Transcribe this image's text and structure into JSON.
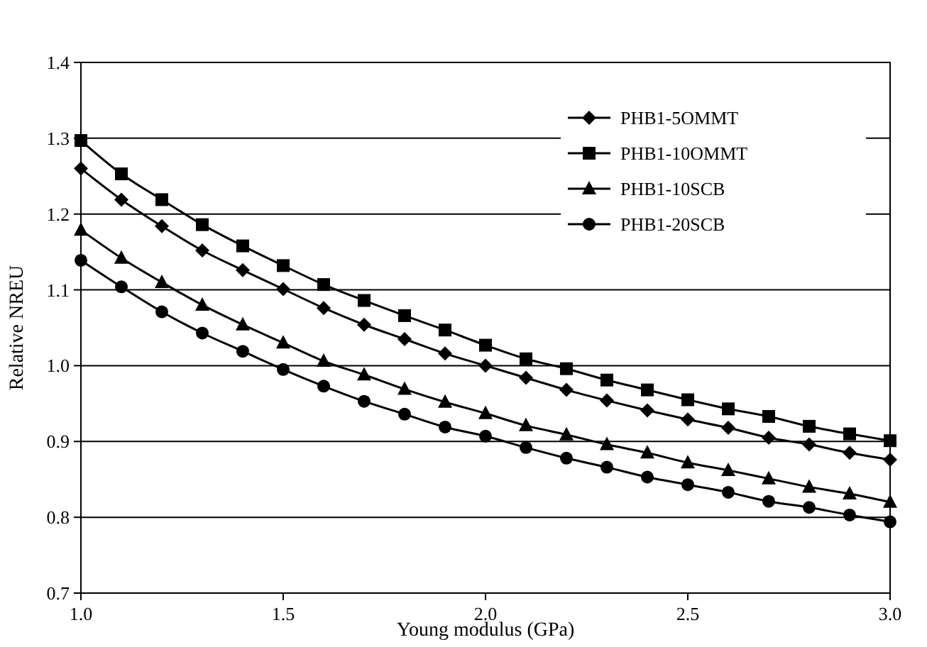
{
  "chart_data": {
    "type": "line",
    "xlabel": "Young modulus (GPa)",
    "ylabel": "Relative NREU",
    "x": [
      1.0,
      1.1,
      1.2,
      1.3,
      1.4,
      1.5,
      1.6,
      1.7,
      1.8,
      1.9,
      2.0,
      2.1,
      2.2,
      2.3,
      2.4,
      2.5,
      2.6,
      2.7,
      2.8,
      2.9,
      3.0
    ],
    "series": [
      {
        "name": "PHB1-5OMMT",
        "color": "#000000",
        "marker": "diamond",
        "values": [
          1.26,
          1.219,
          1.184,
          1.152,
          1.126,
          1.101,
          1.076,
          1.054,
          1.035,
          1.016,
          1.0,
          0.984,
          0.968,
          0.954,
          0.941,
          0.929,
          0.918,
          0.905,
          0.896,
          0.885,
          0.876
        ]
      },
      {
        "name": "PHB1-10OMMT",
        "color": "#000000",
        "marker": "square",
        "values": [
          1.297,
          1.253,
          1.219,
          1.186,
          1.158,
          1.132,
          1.107,
          1.086,
          1.066,
          1.047,
          1.027,
          1.009,
          0.996,
          0.981,
          0.968,
          0.955,
          0.943,
          0.933,
          0.92,
          0.91,
          0.901
        ]
      },
      {
        "name": "PHB1-10SCB",
        "color": "#000000",
        "marker": "triangle",
        "values": [
          1.179,
          1.142,
          1.11,
          1.08,
          1.054,
          1.03,
          1.006,
          0.988,
          0.969,
          0.952,
          0.937,
          0.921,
          0.909,
          0.896,
          0.885,
          0.872,
          0.862,
          0.851,
          0.84,
          0.831,
          0.82
        ]
      },
      {
        "name": "PHB1-20SCB",
        "color": "#000000",
        "marker": "circle",
        "values": [
          1.139,
          1.104,
          1.071,
          1.043,
          1.019,
          0.995,
          0.973,
          0.953,
          0.936,
          0.919,
          0.907,
          0.892,
          0.878,
          0.866,
          0.853,
          0.843,
          0.833,
          0.821,
          0.813,
          0.803,
          0.794
        ]
      }
    ],
    "xlim": [
      1.0,
      3.0
    ],
    "xticks": [
      {
        "value": 1.0,
        "label": "1.0"
      },
      {
        "value": 1.5,
        "label": "1.5"
      },
      {
        "value": 2.0,
        "label": "2.0"
      },
      {
        "value": 2.5,
        "label": "2.5"
      },
      {
        "value": 3.0,
        "label": "3.0"
      }
    ],
    "ylim": [
      0.7,
      1.4
    ],
    "yticks": [
      {
        "value": 0.7,
        "label": "0.7"
      },
      {
        "value": 0.8,
        "label": "0.8"
      },
      {
        "value": 0.9,
        "label": "0.9"
      },
      {
        "value": 1.0,
        "label": "1.0"
      },
      {
        "value": 1.1,
        "label": "1.1"
      },
      {
        "value": 1.2,
        "label": "1.2"
      },
      {
        "value": 1.3,
        "label": "1.3"
      },
      {
        "value": 1.4,
        "label": "1.4"
      }
    ],
    "grid": "y",
    "legend": "top right",
    "line_style": "solid"
  }
}
